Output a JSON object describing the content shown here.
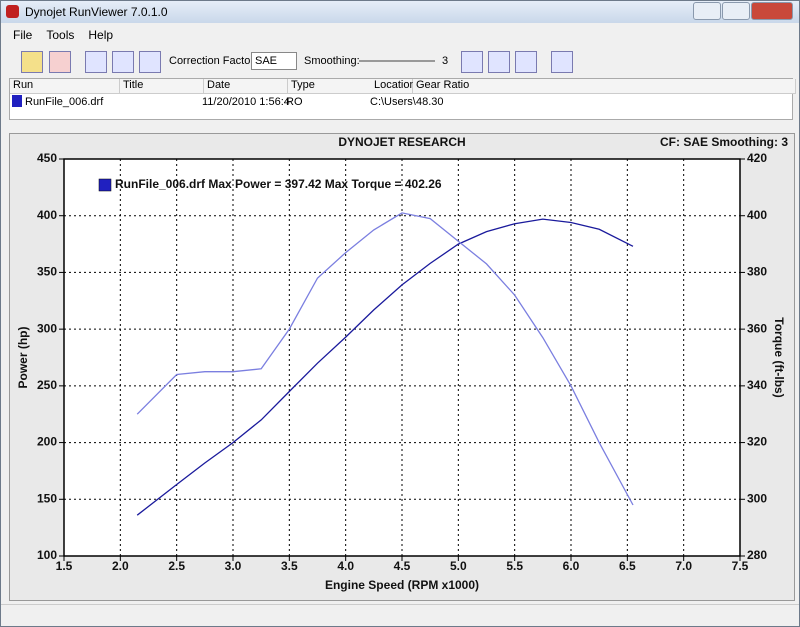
{
  "window": {
    "title": "Dynojet RunViewer 7.0.1.0"
  },
  "menu": [
    "File",
    "Tools",
    "Help"
  ],
  "toolbar": {
    "correction_label": "Correction Factor:",
    "correction_value": "SAE",
    "smoothing_label": "Smoothing:",
    "smoothing_value": "3"
  },
  "runs_table": {
    "headers": [
      "Run",
      "Title",
      "Date",
      "Type",
      "Location",
      "Gear Ratio"
    ],
    "row": {
      "run": "RunFile_006.drf",
      "date": "11/20/2010 1:56:4",
      "type": "RO",
      "location": "C:\\Users\\",
      "gear_ratio": "48.30"
    }
  },
  "chart_data": {
    "type": "line",
    "title": "DYNOJET RESEARCH",
    "subtitle": "CF: SAE  Smoothing: 3",
    "x_label": "Engine Speed (RPM x1000)",
    "y_label": "Power (hp)",
    "y2_label": "Torque (ft-lbs)",
    "legend": "RunFile_006.drf Max Power = 397.42 Max Torque = 402.26",
    "legend_color": "#2020c0",
    "grid": true,
    "x": [
      2.15,
      2.5,
      2.75,
      3.0,
      3.25,
      3.5,
      3.75,
      4.0,
      4.25,
      4.5,
      4.75,
      5.0,
      5.25,
      5.5,
      5.75,
      6.0,
      6.25,
      6.55
    ],
    "series": [
      {
        "color": "#1a1a9c",
        "values": [
          136,
          163,
          182,
          200,
          220,
          245,
          270,
          293,
          317,
          339,
          358,
          375,
          386,
          393,
          397,
          394,
          388,
          373
        ]
      },
      {
        "color": "#7b7fe0",
        "axis": "y2",
        "values": [
          330,
          344,
          345,
          345,
          346,
          360,
          378,
          387,
          395,
          401,
          399,
          391,
          383,
          372,
          357,
          340,
          320,
          298
        ]
      }
    ],
    "xlim": [
      1.5,
      7.5
    ],
    "xticks": [
      1.5,
      {
        "value": 2,
        "label": "2.0"
      },
      2.5,
      {
        "value": 3,
        "label": "3.0"
      },
      3.5,
      {
        "value": 4,
        "label": "4.0"
      },
      4.5,
      {
        "value": 5,
        "label": "5.0"
      },
      5.5,
      {
        "value": 6,
        "label": "6.0"
      },
      6.5,
      {
        "value": 7,
        "label": "7.0"
      },
      7.5
    ],
    "ylim": [
      100,
      450
    ],
    "yticks": [
      100,
      150,
      200,
      250,
      300,
      350,
      400,
      450
    ],
    "y2lim": [
      280,
      420
    ],
    "y2ticks": [
      280,
      300,
      320,
      340,
      360,
      380,
      400,
      420
    ]
  }
}
